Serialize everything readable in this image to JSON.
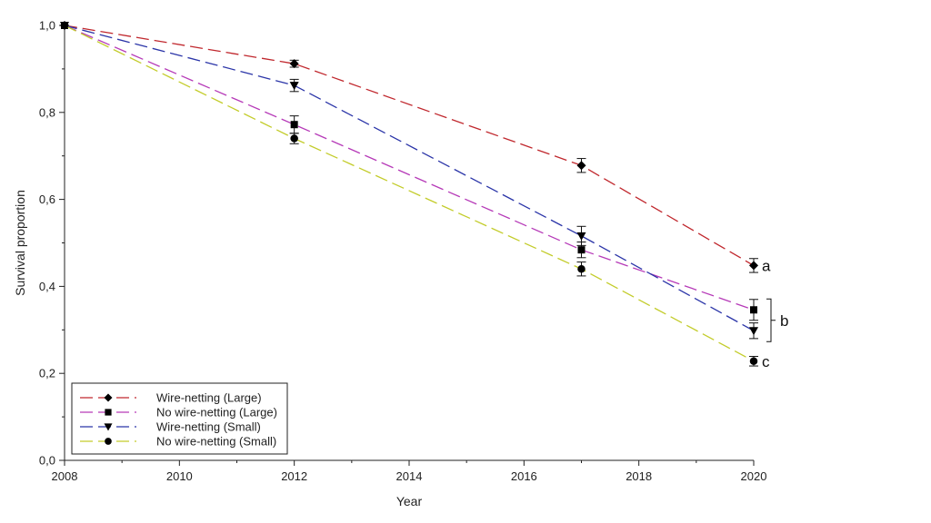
{
  "chart_data": {
    "type": "line",
    "title": "",
    "xlabel": "Year",
    "ylabel": "Survival proportion",
    "xlim": [
      2008,
      2020
    ],
    "ylim": [
      0,
      1
    ],
    "x_ticks": [
      2008,
      2010,
      2012,
      2014,
      2016,
      2018,
      2020
    ],
    "x_tick_labels": [
      "2008",
      "2010",
      "2012",
      "2014",
      "2016",
      "2018",
      "2020"
    ],
    "y_ticks": [
      0,
      0.2,
      0.4,
      0.6,
      0.8,
      1.0
    ],
    "y_tick_labels": [
      "0,0",
      "0,2",
      "0,4",
      "0,6",
      "0,8",
      "1,0"
    ],
    "grid": false,
    "legend_position": "bottom-left",
    "series": [
      {
        "name": "Wire-netting (Large)",
        "color": "#c0272d",
        "marker": "diamond",
        "x": [
          2008,
          2012,
          2017,
          2020
        ],
        "y": [
          1.0,
          0.912,
          0.678,
          0.448
        ],
        "err": [
          0,
          0.008,
          0.016,
          0.016
        ]
      },
      {
        "name": "No wire-netting (Large)",
        "color": "#b63ab8",
        "marker": "square",
        "x": [
          2008,
          2012,
          2017,
          2020
        ],
        "y": [
          1.0,
          0.772,
          0.484,
          0.346
        ],
        "err": [
          0,
          0.02,
          0.018,
          0.024
        ]
      },
      {
        "name": "Wire-netting (Small)",
        "color": "#2b35a8",
        "marker": "triangle-down",
        "x": [
          2008,
          2012,
          2017,
          2020
        ],
        "y": [
          1.0,
          0.862,
          0.516,
          0.298
        ],
        "err": [
          0,
          0.014,
          0.022,
          0.018
        ]
      },
      {
        "name": "No wire-netting (Small)",
        "color": "#c3cc2a",
        "marker": "circle",
        "x": [
          2008,
          2012,
          2017,
          2020
        ],
        "y": [
          1.0,
          0.74,
          0.44,
          0.228
        ],
        "err": [
          0,
          0.012,
          0.016,
          0.011
        ]
      }
    ],
    "annotations": [
      {
        "text": "a",
        "series": [
          "Wire-netting (Large)"
        ]
      },
      {
        "text": "b",
        "series": [
          "No wire-netting (Large)",
          "Wire-netting (Small)"
        ],
        "bracket": true
      },
      {
        "text": "c",
        "series": [
          "No wire-netting (Small)"
        ]
      }
    ]
  }
}
